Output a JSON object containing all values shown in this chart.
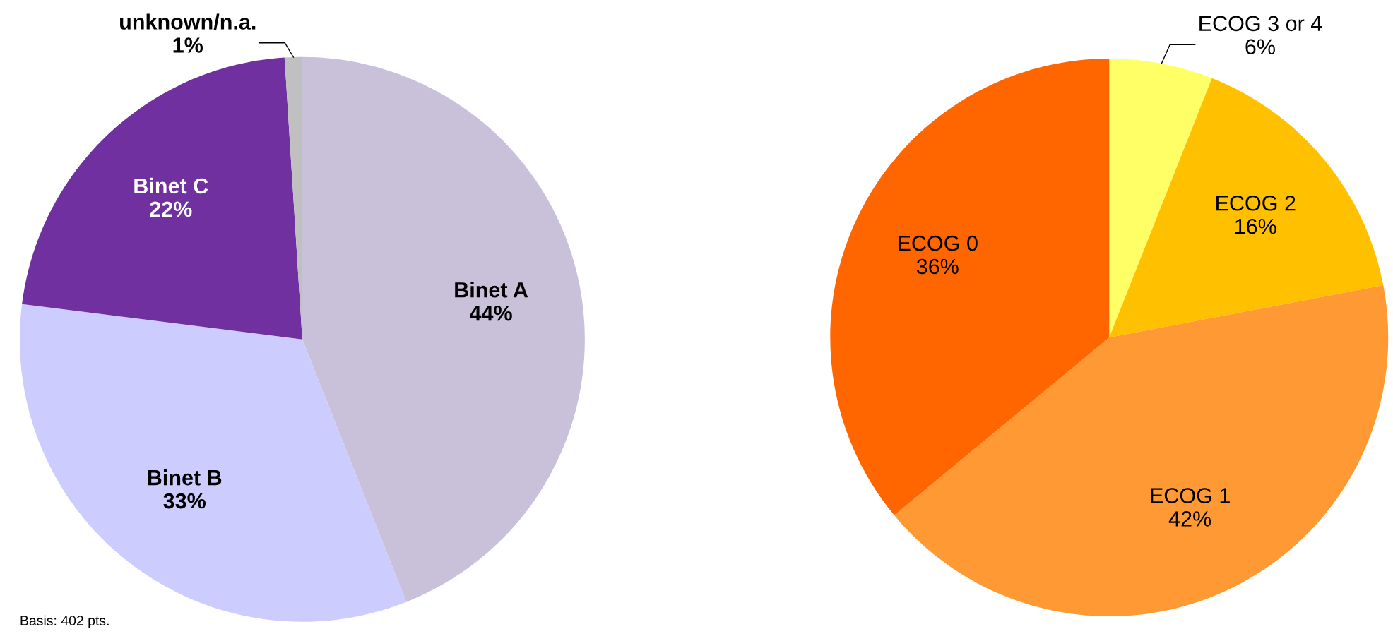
{
  "chart_data": [
    {
      "type": "pie",
      "categories": [
        "Binet A",
        "Binet B",
        "Binet C",
        "unknown/n.a."
      ],
      "values": [
        44,
        33,
        22,
        1
      ],
      "colors": [
        "#c9c0da",
        "#ccccff",
        "#7030a0",
        "#c0c0c0"
      ],
      "value_labels": [
        "44%",
        "33%",
        "22%",
        "1%"
      ],
      "annotations": [
        "Basis: 402 pts."
      ]
    },
    {
      "type": "pie",
      "categories": [
        "ECOG 3 or 4",
        "ECOG 2",
        "ECOG 1",
        "ECOG 0"
      ],
      "values": [
        6,
        16,
        42,
        36
      ],
      "colors": [
        "#ffff66",
        "#ffc000",
        "#ff9933",
        "#ff6600"
      ],
      "value_labels": [
        "6%",
        "16%",
        "42%",
        "36%"
      ]
    }
  ]
}
